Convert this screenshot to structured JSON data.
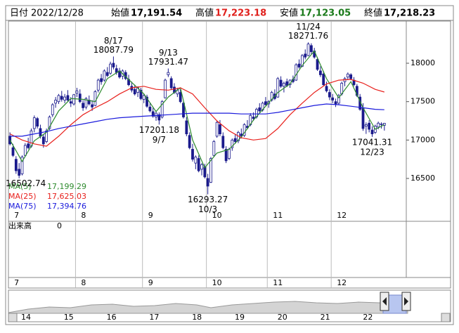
{
  "chart_data": {
    "type": "candlestick",
    "header": {
      "date_label": "日付",
      "date": "2022/12/28",
      "items": [
        {
          "label": "始値",
          "value": "17,191.54",
          "color": "#000000"
        },
        {
          "label": "高値",
          "value": "17,223.18",
          "color": "#e0201c"
        },
        {
          "label": "安値",
          "value": "17,123.05",
          "color": "#1a7a1a"
        },
        {
          "label": "終値",
          "value": "17,218.23",
          "color": "#000000"
        }
      ]
    },
    "up_color": "#ffffff",
    "down_color": "#1a1a8c",
    "edge_color": "#1a1a8c",
    "candles": [
      [
        17050,
        17100,
        16930,
        16950
      ],
      [
        16900,
        16950,
        16780,
        16800
      ],
      [
        16750,
        16790,
        16560,
        16600
      ],
      [
        16620,
        16700,
        16502.74,
        16540
      ],
      [
        16560,
        16800,
        16540,
        16780
      ],
      [
        16800,
        16960,
        16780,
        16930
      ],
      [
        16950,
        17030,
        16880,
        16900
      ],
      [
        16920,
        17150,
        16900,
        17120
      ],
      [
        17150,
        17320,
        17100,
        17290
      ],
      [
        17280,
        17300,
        17150,
        17180
      ],
      [
        17150,
        17200,
        17020,
        17050
      ],
      [
        17040,
        17080,
        16900,
        16950
      ],
      [
        16980,
        17150,
        16960,
        17120
      ],
      [
        17150,
        17320,
        17130,
        17300
      ],
      [
        17330,
        17480,
        17300,
        17460
      ],
      [
        17480,
        17560,
        17420,
        17520
      ],
      [
        17500,
        17600,
        17470,
        17580
      ],
      [
        17570,
        17640,
        17500,
        17530
      ],
      [
        17520,
        17600,
        17480,
        17560
      ],
      [
        17580,
        17650,
        17500,
        17520
      ],
      [
        17500,
        17560,
        17430,
        17480
      ],
      [
        17470,
        17600,
        17450,
        17590
      ],
      [
        17610,
        17680,
        17560,
        17640
      ],
      [
        17600,
        17660,
        17480,
        17500
      ],
      [
        17480,
        17520,
        17380,
        17420
      ],
      [
        17430,
        17560,
        17400,
        17540
      ],
      [
        17520,
        17580,
        17450,
        17470
      ],
      [
        17460,
        17520,
        17380,
        17430
      ],
      [
        17450,
        17650,
        17440,
        17630
      ],
      [
        17650,
        17800,
        17620,
        17780
      ],
      [
        17800,
        17860,
        17720,
        17760
      ],
      [
        17780,
        17920,
        17760,
        17900
      ],
      [
        17880,
        17950,
        17820,
        17840
      ],
      [
        17870,
        18020,
        17850,
        17990
      ],
      [
        18000,
        18087.79,
        17920,
        17950
      ],
      [
        17930,
        17980,
        17850,
        17880
      ],
      [
        17900,
        17940,
        17800,
        17820
      ],
      [
        17830,
        17920,
        17790,
        17900
      ],
      [
        17880,
        17910,
        17780,
        17800
      ],
      [
        17790,
        17850,
        17700,
        17720
      ],
      [
        17700,
        17760,
        17620,
        17650
      ],
      [
        17660,
        17720,
        17580,
        17600
      ],
      [
        17620,
        17700,
        17560,
        17680
      ],
      [
        17650,
        17680,
        17520,
        17540
      ],
      [
        17530,
        17600,
        17480,
        17580
      ],
      [
        17560,
        17590,
        17420,
        17440
      ],
      [
        17430,
        17480,
        17360,
        17380
      ],
      [
        17370,
        17420,
        17290,
        17310
      ],
      [
        17300,
        17380,
        17250,
        17350
      ],
      [
        17330,
        17360,
        17201.18,
        17260
      ],
      [
        17300,
        17520,
        17280,
        17500
      ],
      [
        17550,
        17800,
        17540,
        17780
      ],
      [
        17850,
        17931.47,
        17820,
        17880
      ],
      [
        17800,
        17830,
        17650,
        17680
      ],
      [
        17690,
        17740,
        17600,
        17620
      ],
      [
        17600,
        17680,
        17560,
        17650
      ],
      [
        17620,
        17660,
        17480,
        17500
      ],
      [
        17480,
        17520,
        17280,
        17300
      ],
      [
        17250,
        17300,
        17050,
        17080
      ],
      [
        17060,
        17100,
        16880,
        16900
      ],
      [
        16880,
        16950,
        16720,
        16750
      ],
      [
        16700,
        16800,
        16620,
        16780
      ],
      [
        16760,
        16800,
        16580,
        16600
      ],
      [
        16620,
        16700,
        16540,
        16680
      ],
      [
        16650,
        16690,
        16500,
        16520
      ],
      [
        16500,
        16560,
        16293.27,
        16400
      ],
      [
        16450,
        16780,
        16440,
        16760
      ],
      [
        16800,
        17000,
        16780,
        16980
      ],
      [
        17050,
        17250,
        17030,
        17230
      ],
      [
        17200,
        17260,
        17050,
        17080
      ],
      [
        17050,
        17100,
        16880,
        16900
      ],
      [
        16880,
        16920,
        16700,
        16730
      ],
      [
        16760,
        16900,
        16740,
        16880
      ],
      [
        16900,
        17020,
        16860,
        17000
      ],
      [
        17020,
        17080,
        16950,
        16980
      ],
      [
        16990,
        17120,
        16960,
        17100
      ],
      [
        17080,
        17150,
        17020,
        17050
      ],
      [
        17060,
        17220,
        17040,
        17200
      ],
      [
        17180,
        17260,
        17140,
        17160
      ],
      [
        17200,
        17350,
        17180,
        17320
      ],
      [
        17300,
        17360,
        17250,
        17280
      ],
      [
        17300,
        17420,
        17280,
        17400
      ],
      [
        17420,
        17480,
        17360,
        17380
      ],
      [
        17390,
        17500,
        17370,
        17480
      ],
      [
        17500,
        17560,
        17450,
        17460
      ],
      [
        17470,
        17520,
        17420,
        17500
      ],
      [
        17520,
        17640,
        17500,
        17620
      ],
      [
        17600,
        17660,
        17520,
        17540
      ],
      [
        17560,
        17820,
        17550,
        17800
      ],
      [
        17780,
        17830,
        17680,
        17700
      ],
      [
        17700,
        17760,
        17620,
        17740
      ],
      [
        17760,
        17800,
        17690,
        17710
      ],
      [
        17720,
        17790,
        17680,
        17780
      ],
      [
        17790,
        17840,
        17740,
        17760
      ],
      [
        17780,
        18000,
        17770,
        17980
      ],
      [
        17990,
        18050,
        17930,
        17950
      ],
      [
        17960,
        18120,
        17950,
        18100
      ],
      [
        18120,
        18180,
        18050,
        18080
      ],
      [
        18100,
        18271.76,
        18090,
        18250
      ],
      [
        18230,
        18260,
        18120,
        18150
      ],
      [
        18160,
        18200,
        18060,
        18080
      ],
      [
        18050,
        18080,
        17900,
        17920
      ],
      [
        17900,
        17960,
        17820,
        17850
      ],
      [
        17860,
        17900,
        17700,
        17720
      ],
      [
        17700,
        17760,
        17620,
        17640
      ],
      [
        17620,
        17660,
        17520,
        17560
      ],
      [
        17550,
        17600,
        17480,
        17520
      ],
      [
        17500,
        17540,
        17430,
        17470
      ],
      [
        17480,
        17600,
        17460,
        17580
      ],
      [
        17600,
        17760,
        17580,
        17740
      ],
      [
        17760,
        17820,
        17700,
        17800
      ],
      [
        17820,
        17880,
        17780,
        17860
      ],
      [
        17850,
        17870,
        17780,
        17800
      ],
      [
        17780,
        17820,
        17700,
        17720
      ],
      [
        17700,
        17730,
        17560,
        17580
      ],
      [
        17560,
        17600,
        17380,
        17400
      ],
      [
        17420,
        17480,
        17120,
        17150
      ],
      [
        17180,
        17230,
        17080,
        17200
      ],
      [
        17220,
        17260,
        17100,
        17140
      ],
      [
        17130,
        17180,
        17041.31,
        17080
      ],
      [
        17100,
        17200,
        17080,
        17180
      ],
      [
        17170,
        17240,
        17140,
        17220
      ],
      [
        17200,
        17230,
        17150,
        17210
      ],
      [
        17191.54,
        17223.18,
        17123.05,
        17218.23
      ]
    ],
    "x": [
      0,
      4,
      8,
      12,
      16,
      20,
      24,
      28,
      32,
      36,
      40,
      44,
      48,
      52,
      56,
      60,
      64,
      68,
      72,
      76,
      80,
      84,
      88,
      92,
      96,
      100,
      104,
      108,
      112,
      116,
      120,
      123
    ],
    "series": [
      {
        "name": "MA(5)",
        "color": "#2e8b2e",
        "current": {
          "value": 17199.29,
          "label": "17,199.29"
        },
        "values": [
          17000,
          16720,
          16990,
          17100,
          17380,
          17540,
          17530,
          17500,
          17800,
          17900,
          17750,
          17600,
          17370,
          17560,
          17680,
          17000,
          16640,
          16830,
          16880,
          17040,
          17260,
          17440,
          17620,
          17730,
          17970,
          18160,
          17800,
          17550,
          17760,
          17420,
          17140,
          17199.29
        ]
      },
      {
        "name": "MA(25)",
        "color": "#e8201c",
        "current": {
          "value": 17625.03,
          "label": "17,625.03"
        },
        "values": [
          17080,
          17000,
          16950,
          16920,
          17050,
          17200,
          17330,
          17420,
          17500,
          17600,
          17680,
          17700,
          17660,
          17650,
          17680,
          17600,
          17420,
          17250,
          17120,
          17030,
          17000,
          17020,
          17150,
          17330,
          17480,
          17620,
          17730,
          17780,
          17790,
          17740,
          17660,
          17625.03
        ]
      },
      {
        "name": "MA(75)",
        "color": "#1a1adc",
        "current": {
          "value": 17394.76,
          "label": "17,394.76"
        },
        "values": [
          17050,
          17050,
          17080,
          17110,
          17150,
          17180,
          17210,
          17240,
          17270,
          17290,
          17300,
          17310,
          17320,
          17330,
          17340,
          17350,
          17350,
          17350,
          17350,
          17340,
          17340,
          17340,
          17360,
          17390,
          17420,
          17450,
          17470,
          17460,
          17440,
          17420,
          17400,
          17394.76
        ]
      }
    ],
    "xlim": [
      -0.5,
      130.2
    ],
    "ylim": [
      15942,
      18549
    ],
    "yticks": [
      16500,
      17000,
      17500,
      18000
    ],
    "xticks": [
      {
        "value": 0,
        "label": "7"
      },
      {
        "value": 22,
        "label": "8"
      },
      {
        "value": 44,
        "label": "9"
      },
      {
        "value": 65,
        "label": "10"
      },
      {
        "value": 85,
        "label": "11"
      },
      {
        "value": 106,
        "label": "12"
      }
    ],
    "annotations": [
      {
        "x": 34,
        "date": "8/17",
        "value": 18087.79,
        "side": "high"
      },
      {
        "x": 52,
        "date": "9/13",
        "value": 17931.47,
        "side": "high"
      },
      {
        "x": 98,
        "date": "11/24",
        "value": 18271.76,
        "side": "high"
      },
      {
        "x": 49,
        "date": "9/7",
        "value": 17201.18,
        "side": "low"
      },
      {
        "x": 65,
        "date": "10/3",
        "value": 16293.27,
        "side": "low"
      },
      {
        "x": 119,
        "date": "12/23",
        "value": 17041.31,
        "side": "low"
      },
      {
        "x": 3,
        "value": 16502.74,
        "side": "low"
      }
    ],
    "volume": {
      "label": "出来高",
      "value": 0
    },
    "navigator": {
      "labels": [
        "14",
        "15",
        "16",
        "17",
        "18",
        "19",
        "20",
        "21",
        "22"
      ]
    }
  }
}
